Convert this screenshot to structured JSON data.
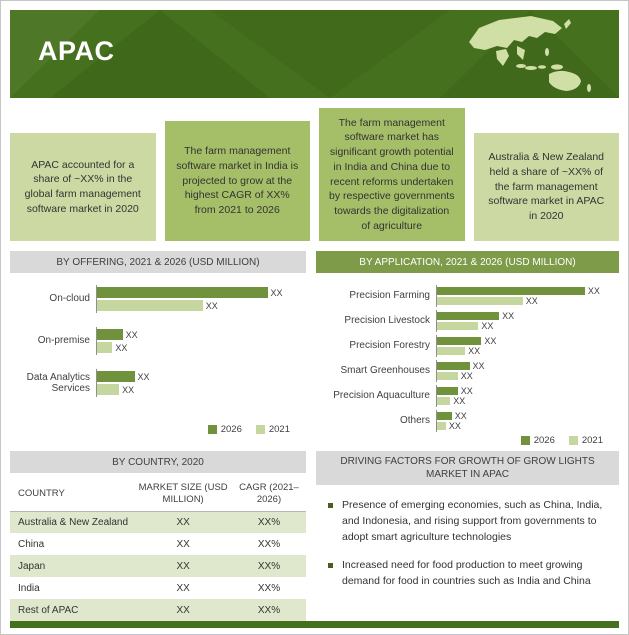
{
  "page": {
    "title": "APAC"
  },
  "highlights": [
    {
      "text": "APAC accounted for a share of ~XX% in the global farm management software market in 2020"
    },
    {
      "text": "The farm management software market in India is projected to grow at the highest CAGR of XX% from 2021 to 2026"
    },
    {
      "text": "The farm management software market has significant growth potential in India and China due to recent reforms undertaken by respective governments towards the digitalization of agriculture"
    },
    {
      "text": "Australia & New Zealand held a share of ~XX% of the farm management software market in APAC in 2020"
    }
  ],
  "chart_data": [
    {
      "type": "bar",
      "orientation": "horizontal",
      "title": "BY OFFERING, 2021 & 2026 (USD MILLION)",
      "categories": [
        "On-cloud",
        "On-premise",
        "Data Analytics Services"
      ],
      "series": [
        {
          "name": "2026",
          "color": "#71923d",
          "values": [
            100,
            15,
            22
          ],
          "labels": [
            "XX",
            "XX",
            "XX"
          ]
        },
        {
          "name": "2021",
          "color": "#c5d79e",
          "values": [
            62,
            9,
            13
          ],
          "labels": [
            "XX",
            "XX",
            "XX"
          ]
        }
      ],
      "legend": [
        "2026",
        "2021"
      ],
      "legend_position": "bottom-right"
    },
    {
      "type": "bar",
      "orientation": "horizontal",
      "title": "BY APPLICATION, 2021 & 2026 (USD MILLION)",
      "categories": [
        "Precision Farming",
        "Precision Livestock",
        "Precision Forestry",
        "Smart Greenhouses",
        "Precision Aquaculture",
        "Others"
      ],
      "series": [
        {
          "name": "2026",
          "color": "#71923d",
          "values": [
            100,
            42,
            30,
            22,
            14,
            10
          ],
          "labels": [
            "XX",
            "XX",
            "XX",
            "XX",
            "XX",
            "XX"
          ]
        },
        {
          "name": "2021",
          "color": "#c5d79e",
          "values": [
            58,
            28,
            19,
            14,
            9,
            6
          ],
          "labels": [
            "XX",
            "XX",
            "XX",
            "XX",
            "XX",
            "XX"
          ]
        }
      ],
      "legend": [
        "2026",
        "2021"
      ],
      "legend_position": "bottom-right"
    }
  ],
  "country_table": {
    "title": "BY COUNTRY, 2020",
    "columns": [
      "COUNTRY",
      "MARKET SIZE (USD MILLION)",
      "CAGR (2021–2026)"
    ],
    "rows": [
      [
        "Australia & New Zealand",
        "XX",
        "XX%"
      ],
      [
        "China",
        "XX",
        "XX%"
      ],
      [
        "Japan",
        "XX",
        "XX%"
      ],
      [
        "India",
        "XX",
        "XX%"
      ],
      [
        "Rest of APAC",
        "XX",
        "XX%"
      ]
    ]
  },
  "driving_factors": {
    "title": "DRIVING FACTORS FOR GROWTH OF GROW LIGHTS MARKET IN APAC",
    "bullets": [
      "Presence of emerging economies, such as China, India, and Indonesia, and rising support from governments to adopt smart agriculture technologies",
      "Increased need for food production to meet growing demand for food in countries such as India and China"
    ]
  },
  "colors": {
    "banner_green": "#45701d",
    "box_light_green": "#cdd9a3",
    "box_medium_green": "#a5bf68",
    "bar_dark_green": "#71923d",
    "bar_light_green": "#c5d79e",
    "panel_header_gray": "#d9d9d9",
    "panel_header_olive": "#7e9b49",
    "table_stripe_green": "#dfe8cc",
    "footer_green": "#45701d"
  }
}
